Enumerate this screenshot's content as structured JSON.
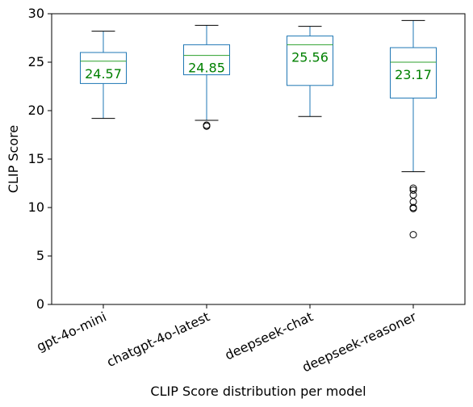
{
  "chart_data": {
    "type": "box",
    "xlabel": "CLIP Score distribution per model",
    "ylabel": "CLIP Score",
    "ylim": [
      0,
      30
    ],
    "yticks": [
      0,
      5,
      10,
      15,
      20,
      25,
      30
    ],
    "grid": false,
    "colors": {
      "box": "#1f77b4",
      "median": "#2ca02c",
      "mean_label": "#008000",
      "whisker": "#1f77b4",
      "cap": "#000000",
      "outlier": "#000000"
    },
    "boxes": [
      {
        "label": "gpt-4o-mini",
        "whisker_low": 19.2,
        "q1": 22.8,
        "median": 25.1,
        "q3": 26.0,
        "whisker_high": 28.2,
        "mean_label": "24.57",
        "outliers": []
      },
      {
        "label": "chatgpt-4o-latest",
        "whisker_low": 19.0,
        "q1": 23.7,
        "median": 25.7,
        "q3": 26.8,
        "whisker_high": 28.8,
        "mean_label": "24.85",
        "outliers": [
          18.5,
          18.4
        ]
      },
      {
        "label": "deepseek-chat",
        "whisker_low": 19.4,
        "q1": 22.6,
        "median": 26.8,
        "q3": 27.7,
        "whisker_high": 28.7,
        "mean_label": "25.56",
        "outliers": []
      },
      {
        "label": "deepseek-reasoner",
        "whisker_low": 13.7,
        "q1": 21.3,
        "median": 25.0,
        "q3": 26.5,
        "whisker_high": 29.3,
        "mean_label": "23.17",
        "outliers": [
          12.0,
          11.8,
          11.3,
          10.6,
          10.0,
          9.9,
          7.2
        ]
      }
    ]
  }
}
